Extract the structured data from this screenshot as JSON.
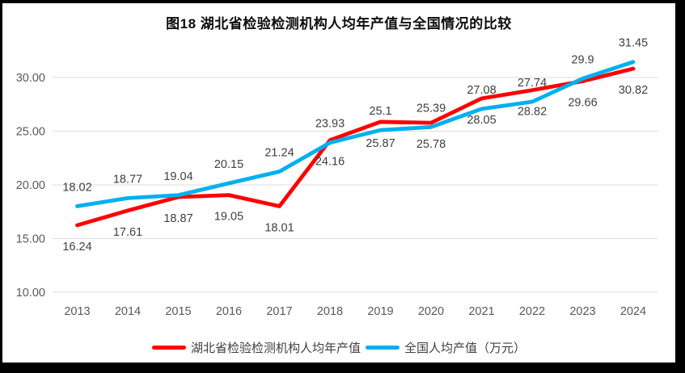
{
  "chart_data": {
    "type": "line",
    "title": "图18  湖北省检验检测机构人均年产值与全国情况的比较",
    "categories": [
      "2013",
      "2014",
      "2015",
      "2016",
      "2017",
      "2018",
      "2019",
      "2020",
      "2021",
      "2022",
      "2023",
      "2024"
    ],
    "series": [
      {
        "name": "湖北省检验检测机构人均年产值",
        "color": "#FF0000",
        "label_position": "below",
        "values": [
          16.24,
          17.61,
          18.87,
          19.05,
          18.01,
          24.16,
          25.87,
          25.78,
          28.05,
          28.82,
          29.66,
          30.82
        ]
      },
      {
        "name": "全国人均产值（万元）",
        "color": "#00B0F0",
        "label_position": "above",
        "values": [
          18.02,
          18.77,
          19.04,
          20.15,
          21.24,
          23.93,
          25.1,
          25.39,
          27.08,
          27.74,
          29.9,
          31.45
        ]
      }
    ],
    "y_ticks": [
      "30.00",
      "25.00",
      "20.00",
      "15.00",
      "10.00"
    ],
    "ylim": [
      10,
      30
    ],
    "xlabel": "",
    "ylabel": "",
    "grid": "horizontal",
    "legend_position": "bottom",
    "grid_color": "#E2E2E2",
    "axis_label_color": "#595959",
    "data_label_color": "#404040"
  }
}
